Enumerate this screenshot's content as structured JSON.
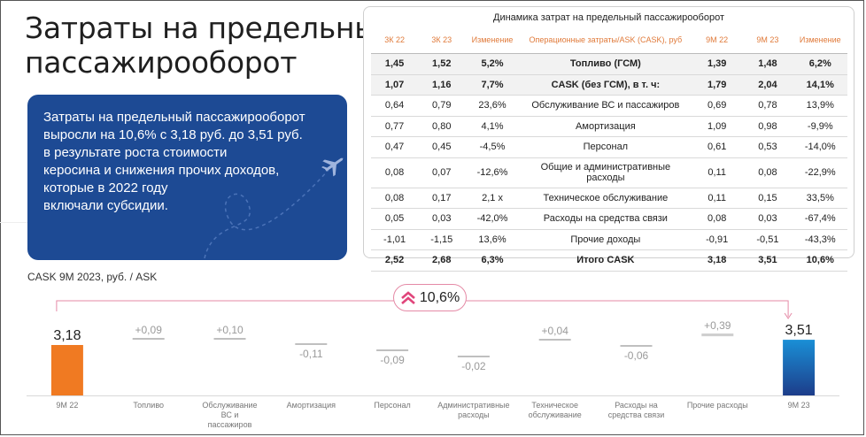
{
  "title": {
    "line1": "Затраты на предельный",
    "line2": "пассажирооборот"
  },
  "bluebox": {
    "lines": [
      "Затраты на предельный пассажирооборот",
      "выросли на 10,6% с 3,18 руб. до 3,51 руб.",
      "в результате роста стоимости",
      "керосина и снижения прочих доходов,",
      "которые в 2022 году",
      "включали субсидии."
    ],
    "icon": "airplane-icon"
  },
  "table": {
    "title": "Динамика затрат на предельный пассажирооборот",
    "headers": [
      "3К 22",
      "3К 23",
      "Изменение",
      "Операционные затраты/ASK (CASK), руб",
      "9М 22",
      "9М 23",
      "Изменение"
    ],
    "rows": [
      {
        "q22": "1,45",
        "q23": "1,52",
        "qchg": "5,2%",
        "name": "Топливо (ГСМ)",
        "m22": "1,39",
        "m23": "1,48",
        "mchg": "6,2%",
        "style": "bold shade"
      },
      {
        "q22": "1,07",
        "q23": "1,16",
        "qchg": "7,7%",
        "name": "CASK (без ГСМ), в т. ч:",
        "m22": "1,79",
        "m23": "2,04",
        "mchg": "14,1%",
        "style": "bold shade"
      },
      {
        "q22": "0,64",
        "q23": "0,79",
        "qchg": "23,6%",
        "name": "Обслуживание ВС и пассажиров",
        "m22": "0,69",
        "m23": "0,78",
        "mchg": "13,9%",
        "style": ""
      },
      {
        "q22": "0,77",
        "q23": "0,80",
        "qchg": "4,1%",
        "name": "Амортизация",
        "m22": "1,09",
        "m23": "0,98",
        "mchg": "-9,9%",
        "style": ""
      },
      {
        "q22": "0,47",
        "q23": "0,45",
        "qchg": "-4,5%",
        "name": "Персонал",
        "m22": "0,61",
        "m23": "0,53",
        "mchg": "-14,0%",
        "style": ""
      },
      {
        "q22": "0,08",
        "q23": "0,07",
        "qchg": "-12,6%",
        "name": "Общие и административные расходы",
        "m22": "0,11",
        "m23": "0,08",
        "mchg": "-22,9%",
        "style": "tall"
      },
      {
        "q22": "0,08",
        "q23": "0,17",
        "qchg": "2,1 x",
        "name": "Техническое обслуживание",
        "m22": "0,11",
        "m23": "0,15",
        "mchg": "33,5%",
        "style": ""
      },
      {
        "q22": "0,05",
        "q23": "0,03",
        "qchg": "-42,0%",
        "name": "Расходы на средства связи",
        "m22": "0,08",
        "m23": "0,03",
        "mchg": "-67,4%",
        "style": ""
      },
      {
        "q22": "-1,01",
        "q23": "-1,15",
        "qchg": "13,6%",
        "name": "Прочие доходы",
        "m22": "-0,91",
        "m23": "-0,51",
        "mchg": "-43,3%",
        "style": ""
      },
      {
        "q22": "2,52",
        "q23": "2,68",
        "qchg": "6,3%",
        "name": "Итого CASK",
        "m22": "3,18",
        "m23": "3,51",
        "mchg": "10,6%",
        "style": "bold"
      }
    ]
  },
  "chart_label": "CASK 9M 2023, руб. / ASK",
  "change_badge": {
    "text": "10,6%",
    "icon": "double-chevron-up-icon",
    "color": "#e0457b"
  },
  "colors": {
    "start_bar": "#f07a22",
    "end_bar_top": "#1a8fd6",
    "end_bar_bottom": "#1d3d8a",
    "step_bar": "#bfbfbf",
    "title_blue": "#1d4a94",
    "header_orange": "#e07a3a"
  },
  "chart_data": {
    "type": "waterfall",
    "categories": [
      "9М 22",
      "Топливо",
      "Обслуживание ВС и пассажиров",
      "Амортизация",
      "Персонал",
      "Административные расходы",
      "Техническое обслуживание",
      "Расходы на средства связи",
      "Прочие расходы",
      "9М 23"
    ],
    "values": [
      3.18,
      0.09,
      0.1,
      -0.11,
      -0.09,
      -0.02,
      0.04,
      -0.06,
      0.39,
      3.51
    ],
    "labels": [
      "3,18",
      "+0,09",
      "+0,10",
      "-0,11",
      "-0,09",
      "-0,02",
      "+0,04",
      "-0,06",
      "+0,39",
      "3,51"
    ],
    "kinds": [
      "total",
      "step",
      "step",
      "step",
      "step",
      "step",
      "step",
      "step",
      "step",
      "total"
    ]
  }
}
